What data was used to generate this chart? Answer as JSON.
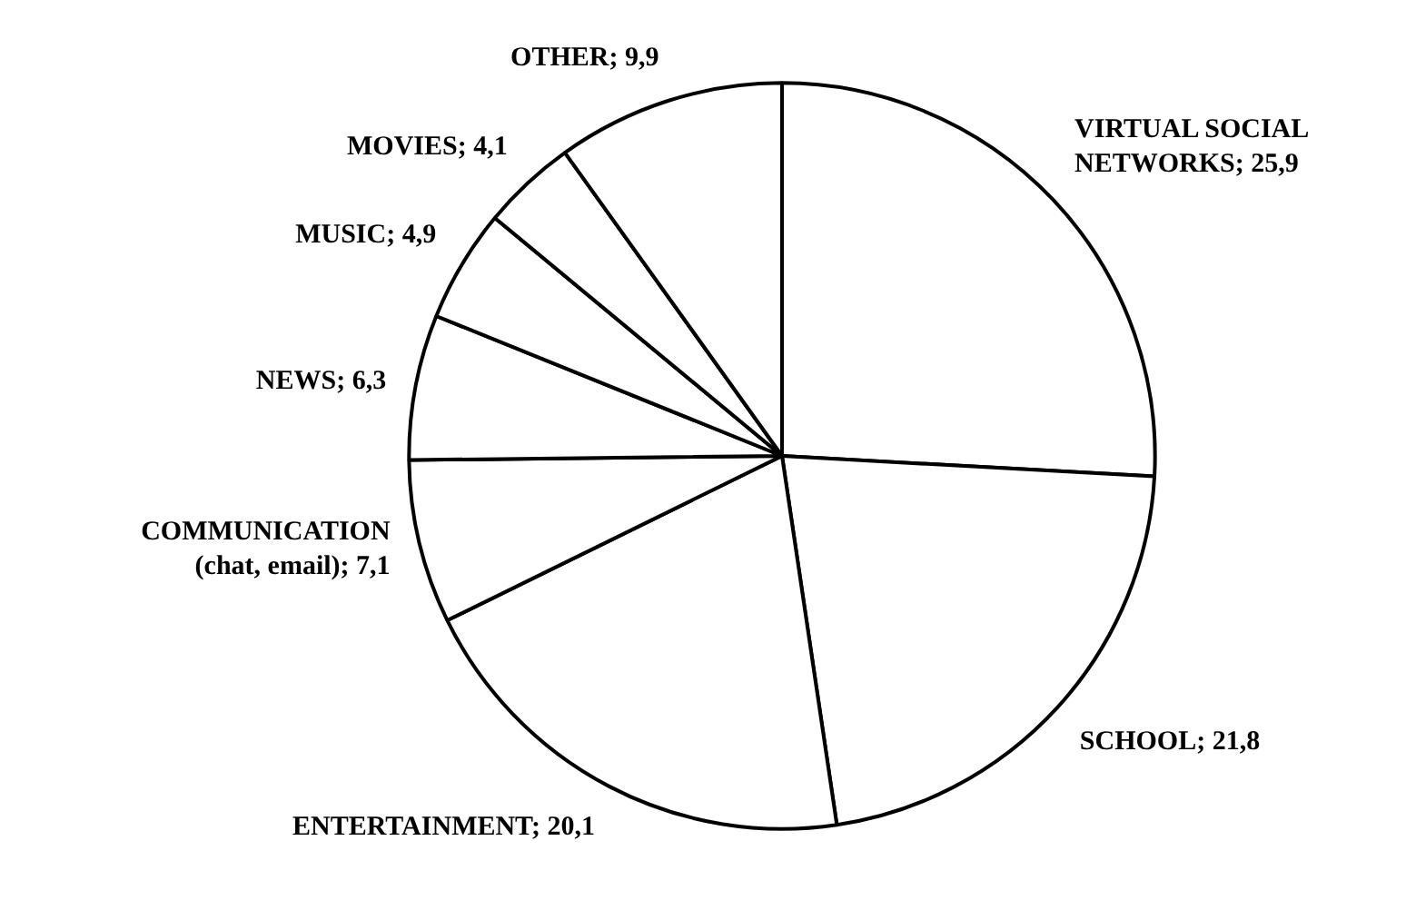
{
  "chart_data": {
    "type": "pie",
    "categories": [
      "VIRTUAL SOCIAL\nNETWORKS",
      "SCHOOL",
      "ENTERTAINMENT",
      "COMMUNICATION\n(chat, email)",
      "NEWS",
      "MUSIC",
      "MOVIES",
      "OTHER"
    ],
    "values": [
      25.9,
      21.8,
      20.1,
      7.1,
      6.3,
      4.9,
      4.1,
      9.9
    ],
    "value_labels": [
      "25,9",
      "21,8",
      "20,1",
      "7,1",
      "6,3",
      "4,9",
      "4,1",
      "9,9"
    ],
    "colors": [
      "#ffffff",
      "#ffffff",
      "#ffffff",
      "#ffffff",
      "#ffffff",
      "#ffffff",
      "#ffffff",
      "#ffffff"
    ]
  }
}
